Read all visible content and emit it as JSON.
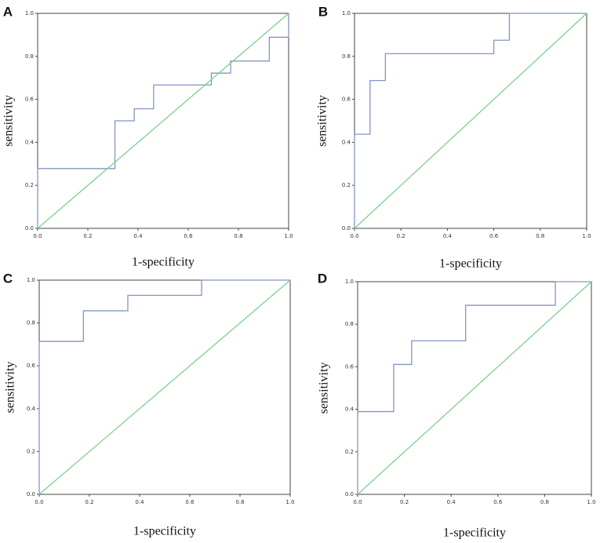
{
  "chart_data": [
    {
      "type": "line",
      "panel_label": "A",
      "xlabel": "1-specificity",
      "ylabel": "sensitivity",
      "xlim": [
        0,
        1
      ],
      "ylim": [
        0,
        1
      ],
      "xticks": [
        {
          "value": 0,
          "label": "0.0"
        },
        {
          "value": 0.2,
          "label": "0.2"
        },
        {
          "value": 0.4,
          "label": "0.4"
        },
        {
          "value": 0.6,
          "label": "0.6"
        },
        {
          "value": 0.8,
          "label": "0.8"
        },
        {
          "value": 1,
          "label": "1.0"
        }
      ],
      "yticks": [
        {
          "value": 0,
          "label": "0.0"
        },
        {
          "value": 0.2,
          "label": "0.2"
        },
        {
          "value": 0.4,
          "label": "0.4"
        },
        {
          "value": 0.6,
          "label": "0.6"
        },
        {
          "value": 0.8,
          "label": "0.8"
        },
        {
          "value": 1,
          "label": "1.0"
        }
      ],
      "series": [
        {
          "color": "#8594c4",
          "x": [
            0,
            0,
            0.308,
            0.308,
            0.385,
            0.385,
            0.462,
            0.462,
            0.692,
            0.692,
            0.769,
            0.769,
            0.923,
            0.923,
            1,
            1
          ],
          "values": [
            0,
            0.278,
            0.278,
            0.5,
            0.5,
            0.556,
            0.556,
            0.667,
            0.667,
            0.722,
            0.722,
            0.778,
            0.778,
            0.889,
            0.889,
            1
          ]
        },
        {
          "color": "#7fd08a",
          "x": [
            0,
            1
          ],
          "values": [
            0,
            1
          ]
        }
      ]
    },
    {
      "type": "line",
      "panel_label": "B",
      "xlabel": "1-specificity",
      "ylabel": "sensitivity",
      "xlim": [
        0,
        1
      ],
      "ylim": [
        0,
        1
      ],
      "xticks": [
        {
          "value": 0,
          "label": "0.0"
        },
        {
          "value": 0.2,
          "label": "0.2"
        },
        {
          "value": 0.4,
          "label": "0.4"
        },
        {
          "value": 0.6,
          "label": "0.6"
        },
        {
          "value": 0.8,
          "label": "0.8"
        },
        {
          "value": 1,
          "label": "1.0"
        }
      ],
      "yticks": [
        {
          "value": 0,
          "label": "0.0"
        },
        {
          "value": 0.2,
          "label": "0.2"
        },
        {
          "value": 0.4,
          "label": "0.4"
        },
        {
          "value": 0.6,
          "label": "0.6"
        },
        {
          "value": 0.8,
          "label": "0.8"
        },
        {
          "value": 1,
          "label": "1.0"
        }
      ],
      "series": [
        {
          "color": "#8594c4",
          "x": [
            0,
            0,
            0.067,
            0.067,
            0.133,
            0.133,
            0.6,
            0.6,
            0.667,
            0.667,
            1
          ],
          "values": [
            0,
            0.4375,
            0.4375,
            0.6875,
            0.6875,
            0.8125,
            0.8125,
            0.875,
            0.875,
            1,
            1
          ]
        },
        {
          "color": "#7fd08a",
          "x": [
            0,
            1
          ],
          "values": [
            0,
            1
          ]
        }
      ]
    },
    {
      "type": "line",
      "panel_label": "C",
      "xlabel": "1-specificity",
      "ylabel": "sensitivity",
      "xlim": [
        0,
        1
      ],
      "ylim": [
        0,
        1
      ],
      "xticks": [
        {
          "value": 0,
          "label": "0.0"
        },
        {
          "value": 0.2,
          "label": "0.2"
        },
        {
          "value": 0.4,
          "label": "0.4"
        },
        {
          "value": 0.6,
          "label": "0.6"
        },
        {
          "value": 0.8,
          "label": "0.8"
        },
        {
          "value": 1,
          "label": "1.0"
        }
      ],
      "yticks": [
        {
          "value": 0,
          "label": "0.0"
        },
        {
          "value": 0.2,
          "label": "0.2"
        },
        {
          "value": 0.4,
          "label": "0.4"
        },
        {
          "value": 0.6,
          "label": "0.6"
        },
        {
          "value": 0.8,
          "label": "0.8"
        },
        {
          "value": 1,
          "label": "1.0"
        }
      ],
      "series": [
        {
          "color": "#8594c4",
          "x": [
            0,
            0,
            0.176,
            0.176,
            0.353,
            0.353,
            0.647,
            0.647,
            1
          ],
          "values": [
            0,
            0.714,
            0.714,
            0.857,
            0.857,
            0.929,
            0.929,
            1,
            1
          ]
        },
        {
          "color": "#7fd08a",
          "x": [
            0,
            1
          ],
          "values": [
            0,
            1
          ]
        }
      ]
    },
    {
      "type": "line",
      "panel_label": "D",
      "xlabel": "1-specificity",
      "ylabel": "sensitivity",
      "xlim": [
        0,
        1
      ],
      "ylim": [
        0,
        1
      ],
      "xticks": [
        {
          "value": 0,
          "label": "0.0"
        },
        {
          "value": 0.2,
          "label": "0.2"
        },
        {
          "value": 0.4,
          "label": "0.4"
        },
        {
          "value": 0.6,
          "label": "0.6"
        },
        {
          "value": 0.8,
          "label": "0.8"
        },
        {
          "value": 1,
          "label": "1.0"
        }
      ],
      "yticks": [
        {
          "value": 0,
          "label": "0.0"
        },
        {
          "value": 0.2,
          "label": "0.2"
        },
        {
          "value": 0.4,
          "label": "0.4"
        },
        {
          "value": 0.6,
          "label": "0.6"
        },
        {
          "value": 0.8,
          "label": "0.8"
        },
        {
          "value": 1,
          "label": "1.0"
        }
      ],
      "series": [
        {
          "color": "#8594c4",
          "x": [
            0,
            0,
            0.154,
            0.154,
            0.231,
            0.231,
            0.462,
            0.462,
            0.846,
            0.846,
            1
          ],
          "values": [
            0,
            0.389,
            0.389,
            0.611,
            0.611,
            0.722,
            0.722,
            0.889,
            0.889,
            1,
            1
          ]
        },
        {
          "color": "#7fd08a",
          "x": [
            0,
            1
          ],
          "values": [
            0,
            1
          ]
        }
      ]
    }
  ]
}
